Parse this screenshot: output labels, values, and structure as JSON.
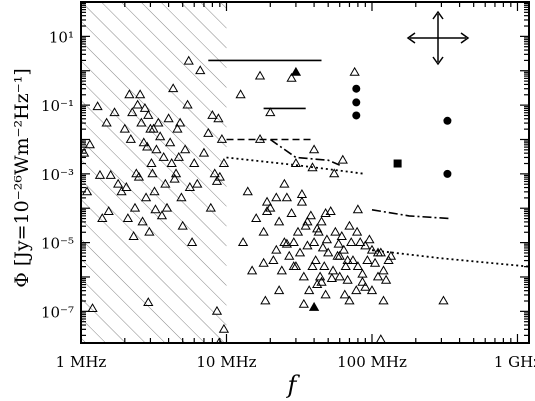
{
  "chart_data": {
    "type": "scatter",
    "title": "",
    "xlabel": "f",
    "ylabel": "Φ [Jy=10⁻²⁶Wm⁻²Hz⁻¹]",
    "x_scale": "log",
    "y_scale": "log",
    "xlim": [
      1000000.0,
      1200000000.0
    ],
    "ylim": [
      1.2e-08,
      100
    ],
    "x_ticks": [
      {
        "value": 1000000.0,
        "label": "1 MHz"
      },
      {
        "value": 10000000.0,
        "label": "10 MHz"
      },
      {
        "value": 100000000.0,
        "label": "100 MHz"
      },
      {
        "value": 1000000000.0,
        "label": "1 GHz"
      }
    ],
    "y_ticks": [
      {
        "value": 10,
        "label": "10¹"
      },
      {
        "value": 0.1,
        "label": "10⁻¹"
      },
      {
        "value": 0.001,
        "label": "10⁻³"
      },
      {
        "value": 1e-05,
        "label": "10⁻⁵"
      },
      {
        "value": 1e-07,
        "label": "10⁻⁷"
      }
    ],
    "grid": false,
    "hatched_region": {
      "x": [
        1000000.0,
        10000000.0
      ]
    },
    "series": [
      {
        "marker": "open-triangle",
        "points": [
          [
            1050000.0,
            0.004
          ],
          [
            1150000.0,
            0.007
          ],
          [
            1300000.0,
            0.09
          ],
          [
            1350000.0,
            0.0009
          ],
          [
            1500000.0,
            0.03
          ],
          [
            1550000.0,
            8e-05
          ],
          [
            1600000.0,
            0.0009
          ],
          [
            1700000.0,
            0.06
          ],
          [
            1800000.0,
            0.0005
          ],
          [
            1900000.0,
            0.0003
          ],
          [
            2000000.0,
            0.02
          ],
          [
            2050000.0,
            0.0004
          ],
          [
            2100000.0,
            5e-05
          ],
          [
            2150000.0,
            0.2
          ],
          [
            2200000.0,
            0.01
          ],
          [
            2250000.0,
            0.06
          ],
          [
            2300000.0,
            1.5e-05
          ],
          [
            2350000.0,
            0.0001
          ],
          [
            2400000.0,
            0.001
          ],
          [
            2450000.0,
            0.1
          ],
          [
            2500000.0,
            0.0008
          ],
          [
            2550000.0,
            0.2
          ],
          [
            2600000.0,
            0.03
          ],
          [
            2650000.0,
            4e-05
          ],
          [
            2700000.0,
            0.008
          ],
          [
            2750000.0,
            0.08
          ],
          [
            2800000.0,
            0.0002
          ],
          [
            2850000.0,
            0.006
          ],
          [
            2900000.0,
            0.05
          ],
          [
            2950000.0,
            2e-05
          ],
          [
            3000000.0,
            0.02
          ],
          [
            3050000.0,
            0.002
          ],
          [
            3100000.0,
            0.001
          ],
          [
            3150000.0,
            0.02
          ],
          [
            3200000.0,
            0.0003
          ],
          [
            3250000.0,
            9e-05
          ],
          [
            3300000.0,
            0.005
          ],
          [
            3400000.0,
            0.03
          ],
          [
            3500000.0,
            0.012
          ],
          [
            3600000.0,
            6e-05
          ],
          [
            3700000.0,
            0.003
          ],
          [
            3800000.0,
            0.0005
          ],
          [
            3900000.0,
            0.0001
          ],
          [
            4000000.0,
            0.04
          ],
          [
            4100000.0,
            0.008
          ],
          [
            4200000.0,
            0.002
          ],
          [
            4300000.0,
            0.3
          ],
          [
            4400000.0,
            0.0007
          ],
          [
            4500000.0,
            0.001
          ],
          [
            4600000.0,
            0.02
          ],
          [
            4700000.0,
            0.003
          ],
          [
            4800000.0,
            0.03
          ],
          [
            4900000.0,
            0.0002
          ],
          [
            5000000.0,
            3e-05
          ],
          [
            5200000.0,
            0.005
          ],
          [
            5400000.0,
            0.1
          ],
          [
            5600000.0,
            0.0004
          ],
          [
            5800000.0,
            1e-05
          ],
          [
            6000000.0,
            0.002
          ],
          [
            6300000.0,
            0.0005
          ],
          [
            6600000.0,
            1.0
          ],
          [
            7000000.0,
            0.004
          ],
          [
            7500000.0,
            0.015
          ],
          [
            7800000.0,
            0.0001
          ],
          [
            8000000.0,
            0.05
          ],
          [
            8300000.0,
            0.001
          ],
          [
            8600000.0,
            0.0006
          ],
          [
            8800000.0,
            0.04
          ],
          [
            9000000.0,
            0.0008
          ],
          [
            9300000.0,
            0.01
          ],
          [
            9600000.0,
            0.002
          ],
          [
            1100000.0,
            0.0003
          ],
          [
            1400000.0,
            5e-05
          ],
          [
            1200000.0,
            1.2e-07
          ],
          [
            2900000.0,
            1.8e-07
          ],
          [
            8600000.0,
            1e-07
          ],
          [
            8900000.0,
            1.2e-08
          ],
          [
            9600000.0,
            3e-08
          ],
          [
            5500000.0,
            1.9
          ],
          [
            12500000.0,
            0.2
          ],
          [
            14000000.0,
            0.0003
          ],
          [
            16000000.0,
            5e-05
          ],
          [
            17000000.0,
            0.01
          ],
          [
            18000000.0,
            2.5e-06
          ],
          [
            19000000.0,
            0.00015
          ],
          [
            20000000.0,
            0.0001
          ],
          [
            21000000.0,
            3e-06
          ],
          [
            22000000.0,
            6e-06
          ],
          [
            23000000.0,
            4e-05
          ],
          [
            24000000.0,
            1.5e-06
          ],
          [
            25000000.0,
            1e-05
          ],
          [
            26000000.0,
            0.0002
          ],
          [
            27000000.0,
            4e-06
          ],
          [
            28000000.0,
            7e-05
          ],
          [
            29000000.0,
            1e-05
          ],
          [
            30000000.0,
            2e-06
          ],
          [
            31000000.0,
            2e-05
          ],
          [
            32000000.0,
            5e-06
          ],
          [
            33000000.0,
            0.00015
          ],
          [
            34000000.0,
            1e-06
          ],
          [
            35000000.0,
            3e-05
          ],
          [
            36000000.0,
            8e-06
          ],
          [
            37000000.0,
            4e-07
          ],
          [
            38000000.0,
            6e-05
          ],
          [
            39000000.0,
            2e-06
          ],
          [
            40000000.0,
            1e-05
          ],
          [
            41000000.0,
            3e-06
          ],
          [
            42000000.0,
            6e-07
          ],
          [
            43000000.0,
            2e-05
          ],
          [
            44000000.0,
            1e-06
          ],
          [
            45000000.0,
            4e-05
          ],
          [
            46000000.0,
            7e-06
          ],
          [
            47000000.0,
            2e-06
          ],
          [
            48000000.0,
            3e-07
          ],
          [
            49000000.0,
            1.2e-05
          ],
          [
            50000000.0,
            5e-06
          ],
          [
            52000000.0,
            8e-05
          ],
          [
            54000000.0,
            1.5e-06
          ],
          [
            56000000.0,
            2e-05
          ],
          [
            58000000.0,
            4e-06
          ],
          [
            60000000.0,
            1e-06
          ],
          [
            62000000.0,
            1.5e-05
          ],
          [
            64000000.0,
            6e-06
          ],
          [
            66000000.0,
            2e-06
          ],
          [
            68000000.0,
            8e-07
          ],
          [
            70000000.0,
            3e-05
          ],
          [
            72000000.0,
            1e-05
          ],
          [
            74000000.0,
            3e-06
          ],
          [
            76000000.0,
            0.9
          ],
          [
            78000000.0,
            4e-07
          ],
          [
            80000000.0,
            2e-06
          ],
          [
            83000000.0,
            1e-05
          ],
          [
            86000000.0,
            1.2e-06
          ],
          [
            90000000.0,
            5e-07
          ],
          [
            93000000.0,
            3e-06
          ],
          [
            96000000.0,
            1.2e-05
          ],
          [
            100000000.0,
            6e-06
          ],
          [
            105000000.0,
            2.5e-06
          ],
          [
            110000000.0,
            1e-06
          ],
          [
            115000000.0,
            5e-06
          ],
          [
            120000000.0,
            1.5e-06
          ],
          [
            125000000.0,
            8e-07
          ],
          [
            130000000.0,
            3e-06
          ],
          [
            17000000.0,
            0.7
          ],
          [
            25000000.0,
            0.0005
          ],
          [
            30000000.0,
            0.002
          ],
          [
            40000000.0,
            0.005
          ],
          [
            20000000.0,
            0.06
          ],
          [
            19000000.0,
            8e-05
          ],
          [
            23000000.0,
            4e-07
          ],
          [
            34000000.0,
            1.6e-07
          ],
          [
            55000000.0,
            0.001
          ],
          [
            65000000.0,
            3e-07
          ],
          [
            80000000.0,
            9e-05
          ],
          [
            90000000.0,
            8e-06
          ],
          [
            100000000.0,
            4e-07
          ],
          [
            110000000.0,
            5e-06
          ],
          [
            13000000.0,
            1e-05
          ],
          [
            15000000.0,
            1.5e-06
          ],
          [
            28000000.0,
            0.6
          ],
          [
            45000000.0,
            7e-07
          ],
          [
            60000000.0,
            4e-06
          ],
          [
            70000000.0,
            2e-07
          ],
          [
            22000000.0,
            0.0002
          ],
          [
            36000000.0,
            4e-05
          ],
          [
            48000000.0,
            7e-05
          ],
          [
            53000000.0,
            9e-07
          ],
          [
            68000000.0,
            3e-06
          ],
          [
            86000000.0,
            7e-07
          ],
          [
            39000000.0,
            0.0015
          ],
          [
            33000000.0,
            0.00025
          ],
          [
            26000000.0,
            9e-06
          ],
          [
            29000000.0,
            2e-06
          ],
          [
            59000000.0,
            9e-06
          ],
          [
            79000000.0,
            2e-05
          ],
          [
            18000000.0,
            2e-05
          ],
          [
            42000000.0,
            2.5e-05
          ],
          [
            135000000.0,
            4e-06
          ],
          [
            120000000.0,
            2e-07
          ],
          [
            310000000.0,
            2e-07
          ],
          [
            115000000.0,
            1.5e-08
          ],
          [
            63000000.0,
            0.0025
          ],
          [
            18500000.0,
            2e-07
          ]
        ]
      },
      {
        "marker": "filled-triangle",
        "points": [
          [
            30000000.0,
            0.9
          ],
          [
            40000000.0,
            1.3e-07
          ]
        ]
      },
      {
        "marker": "filled-circle",
        "points": [
          [
            78000000.0,
            0.3
          ],
          [
            78000000.0,
            0.12
          ],
          [
            78000000.0,
            0.05
          ],
          [
            330000000.0,
            0.035
          ],
          [
            330000000.0,
            0.001
          ]
        ]
      },
      {
        "marker": "filled-square",
        "points": [
          [
            150000000.0,
            0.002
          ]
        ]
      }
    ],
    "line_segments": [
      {
        "style": "solid",
        "points": [
          [
            7500000.0,
            2.0
          ],
          [
            45000000.0,
            2.0
          ]
        ]
      },
      {
        "style": "solid",
        "points": [
          [
            18000000.0,
            0.08
          ],
          [
            35000000.0,
            0.08
          ]
        ]
      },
      {
        "style": "dashed",
        "points": [
          [
            10000000.0,
            0.01
          ],
          [
            38000000.0,
            0.01
          ]
        ]
      },
      {
        "style": "dashdot",
        "points": [
          [
            20000000.0,
            0.01
          ],
          [
            30000000.0,
            0.003
          ],
          [
            50000000.0,
            0.0025
          ],
          [
            60000000.0,
            0.0018
          ]
        ]
      },
      {
        "style": "dashdot",
        "points": [
          [
            100000000.0,
            9e-05
          ],
          [
            180000000.0,
            6e-05
          ],
          [
            350000000.0,
            5e-05
          ]
        ]
      },
      {
        "style": "dotted",
        "points": [
          [
            10000000.0,
            0.003
          ],
          [
            30000000.0,
            0.0018
          ],
          [
            90000000.0,
            0.001
          ]
        ]
      },
      {
        "style": "dotted",
        "points": [
          [
            100000000.0,
            6e-06
          ],
          [
            300000000.0,
            3.5e-06
          ],
          [
            1200000000.0,
            2e-06
          ]
        ]
      }
    ],
    "annotations": [
      {
        "type": "four-way-arrow",
        "position": "top-right"
      }
    ]
  }
}
